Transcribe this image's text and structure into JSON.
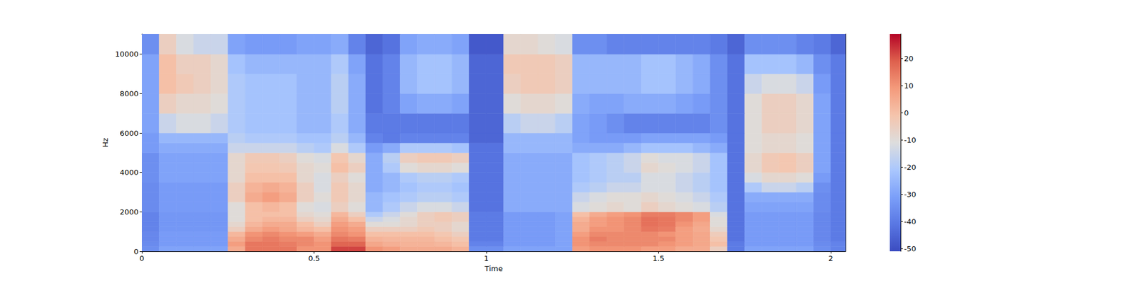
{
  "chart_data": {
    "type": "heatmap",
    "xlabel": "Time",
    "ylabel": "Hz",
    "xlim": [
      0,
      2.043
    ],
    "ylim": [
      0,
      11025
    ],
    "xticks": [
      0,
      0.5,
      1,
      1.5,
      2
    ],
    "yticks": [
      0,
      2000,
      4000,
      6000,
      8000,
      10000
    ],
    "grid": false,
    "x_edges": [
      0,
      0.05,
      0.1,
      0.15,
      0.2,
      0.25,
      0.3,
      0.35,
      0.4,
      0.45,
      0.5,
      0.55,
      0.6,
      0.65,
      0.7,
      0.75,
      0.8,
      0.85,
      0.9,
      0.95,
      1.0,
      1.05,
      1.1,
      1.15,
      1.2,
      1.25,
      1.3,
      1.35,
      1.4,
      1.45,
      1.5,
      1.55,
      1.6,
      1.65,
      1.7,
      1.75,
      1.8,
      1.85,
      1.9,
      1.95,
      2.0,
      2.043
    ],
    "y_edges": [
      0,
      250,
      500,
      750,
      1000,
      1250,
      1500,
      1750,
      2000,
      2500,
      3000,
      3500,
      4000,
      4500,
      5000,
      5500,
      6000,
      7000,
      8000,
      9000,
      10000,
      11025
    ],
    "cells": [
      [
        -35,
        -30,
        -30,
        -30,
        -30,
        5,
        15,
        15,
        15,
        10,
        10,
        22,
        22,
        10,
        8,
        5,
        5,
        5,
        3,
        -35,
        -35,
        -30,
        -30,
        -30,
        -30,
        8,
        10,
        10,
        10,
        8,
        8,
        5,
        5,
        -5,
        -40,
        -30,
        -30,
        -30,
        -30,
        -35,
        -38
      ],
      [
        -36,
        -32,
        -32,
        -32,
        -32,
        8,
        15,
        15,
        14,
        12,
        10,
        18,
        18,
        6,
        4,
        3,
        3,
        2,
        0,
        -38,
        -38,
        -32,
        -32,
        -32,
        -30,
        10,
        12,
        12,
        12,
        12,
        10,
        8,
        6,
        0,
        -40,
        -32,
        -32,
        -32,
        -32,
        -36,
        -38
      ],
      [
        -37,
        -32,
        -32,
        -32,
        -32,
        5,
        12,
        14,
        12,
        12,
        8,
        15,
        14,
        3,
        2,
        2,
        2,
        0,
        -2,
        -40,
        -40,
        -32,
        -32,
        -32,
        -30,
        10,
        14,
        12,
        12,
        12,
        12,
        8,
        6,
        -2,
        -42,
        -32,
        -32,
        -32,
        -32,
        -37,
        -40
      ],
      [
        -37,
        -32,
        -32,
        -32,
        -32,
        2,
        10,
        12,
        10,
        8,
        5,
        12,
        10,
        0,
        0,
        0,
        0,
        -2,
        -5,
        -40,
        -40,
        -32,
        -32,
        -32,
        -30,
        8,
        12,
        12,
        12,
        12,
        10,
        8,
        6,
        -4,
        -42,
        -32,
        -32,
        -32,
        -32,
        -37,
        -40
      ],
      [
        -38,
        -33,
        -33,
        -33,
        -33,
        -5,
        5,
        8,
        6,
        2,
        0,
        10,
        8,
        -5,
        -5,
        -5,
        -3,
        -5,
        -8,
        -40,
        -40,
        -32,
        -32,
        -32,
        -30,
        5,
        10,
        10,
        12,
        15,
        14,
        8,
        5,
        -8,
        -42,
        -32,
        -32,
        -32,
        -32,
        -37,
        -40
      ],
      [
        -38,
        -33,
        -33,
        -33,
        -33,
        -8,
        2,
        5,
        5,
        0,
        -5,
        8,
        5,
        -10,
        -10,
        -8,
        -5,
        -5,
        -8,
        -40,
        -40,
        -32,
        -32,
        -32,
        -30,
        5,
        8,
        10,
        12,
        16,
        15,
        10,
        6,
        -10,
        -42,
        -32,
        -32,
        -32,
        -32,
        -37,
        -40
      ],
      [
        -38,
        -33,
        -33,
        -33,
        -33,
        -10,
        0,
        2,
        2,
        -5,
        -8,
        5,
        0,
        -15,
        -12,
        -8,
        -5,
        -3,
        -5,
        -40,
        -40,
        -32,
        -32,
        -32,
        -30,
        3,
        8,
        10,
        12,
        16,
        15,
        12,
        8,
        -10,
        -42,
        -32,
        -32,
        -32,
        -32,
        -37,
        -40
      ],
      [
        -38,
        -33,
        -33,
        -33,
        -33,
        -10,
        0,
        0,
        0,
        -8,
        -10,
        2,
        -5,
        -20,
        -15,
        -10,
        -5,
        -3,
        -5,
        -40,
        -40,
        -32,
        -32,
        -32,
        -30,
        0,
        5,
        8,
        10,
        14,
        14,
        12,
        8,
        -12,
        -42,
        -32,
        -32,
        -32,
        -32,
        -37,
        -40
      ],
      [
        -36,
        -32,
        -32,
        -32,
        -32,
        -10,
        0,
        2,
        0,
        -10,
        -12,
        -5,
        -10,
        -25,
        -20,
        -15,
        -12,
        -12,
        -15,
        -42,
        -42,
        -28,
        -28,
        -28,
        -28,
        -12,
        -10,
        -8,
        -10,
        -5,
        -8,
        -10,
        -12,
        -18,
        -42,
        -30,
        -30,
        -30,
        -30,
        -36,
        -40
      ],
      [
        -36,
        -32,
        -32,
        -32,
        -32,
        -5,
        5,
        8,
        5,
        -5,
        -10,
        -3,
        -8,
        -25,
        -22,
        -20,
        -18,
        -18,
        -20,
        -42,
        -42,
        -28,
        -28,
        -28,
        -28,
        -15,
        -12,
        -10,
        -10,
        -8,
        -10,
        -12,
        -15,
        -20,
        -42,
        -28,
        -28,
        -28,
        -28,
        -36,
        -40
      ],
      [
        -36,
        -32,
        -32,
        -32,
        -32,
        -5,
        3,
        5,
        3,
        -5,
        -12,
        -3,
        -8,
        -28,
        -25,
        -22,
        -20,
        -20,
        -22,
        -42,
        -42,
        -28,
        -28,
        -28,
        -28,
        -20,
        -18,
        -15,
        -15,
        -12,
        -12,
        -15,
        -18,
        -22,
        -42,
        -20,
        -15,
        -15,
        -18,
        -35,
        -40
      ],
      [
        -35,
        -30,
        -30,
        -30,
        -30,
        -8,
        0,
        0,
        0,
        -8,
        -12,
        -5,
        -10,
        -28,
        -25,
        -20,
        -18,
        -18,
        -20,
        -42,
        -42,
        -28,
        -28,
        -28,
        -28,
        -22,
        -20,
        -18,
        -18,
        -12,
        -12,
        -15,
        -18,
        -22,
        -42,
        -12,
        -8,
        -8,
        -10,
        -32,
        -40
      ],
      [
        -35,
        -30,
        -30,
        -30,
        -30,
        -8,
        -2,
        -2,
        -3,
        -8,
        -10,
        0,
        -5,
        -28,
        -20,
        -10,
        -8,
        -8,
        -10,
        -42,
        -42,
        -28,
        -28,
        -28,
        -28,
        -22,
        -20,
        -18,
        -15,
        -8,
        -10,
        -12,
        -15,
        -22,
        -42,
        -8,
        -3,
        -2,
        -5,
        -30,
        -40
      ],
      [
        -35,
        -30,
        -30,
        -30,
        -30,
        -8,
        -3,
        -3,
        -5,
        -10,
        -12,
        -2,
        -8,
        -28,
        -18,
        -5,
        -3,
        -3,
        -5,
        -42,
        -42,
        -28,
        -28,
        -28,
        -28,
        -22,
        -20,
        -18,
        -15,
        -10,
        -12,
        -12,
        -15,
        -22,
        -42,
        -8,
        -3,
        -2,
        -5,
        -30,
        -40
      ],
      [
        -32,
        -28,
        -28,
        -28,
        -28,
        -15,
        -15,
        -15,
        -15,
        -18,
        -20,
        -12,
        -20,
        -32,
        -28,
        -20,
        -20,
        -20,
        -22,
        -42,
        -42,
        -25,
        -25,
        -25,
        -25,
        -28,
        -28,
        -28,
        -25,
        -22,
        -22,
        -22,
        -25,
        -28,
        -42,
        -10,
        -8,
        -8,
        -10,
        -30,
        -40
      ],
      [
        -32,
        -25,
        -25,
        -25,
        -25,
        -18,
        -20,
        -20,
        -20,
        -22,
        -22,
        -18,
        -25,
        -38,
        -40,
        -38,
        -38,
        -38,
        -38,
        -45,
        -45,
        -25,
        -25,
        -25,
        -25,
        -30,
        -32,
        -32,
        -32,
        -30,
        -30,
        -30,
        -30,
        -32,
        -42,
        -10,
        -8,
        -8,
        -10,
        -30,
        -40
      ],
      [
        -30,
        -15,
        -12,
        -12,
        -15,
        -20,
        -22,
        -22,
        -22,
        -25,
        -25,
        -20,
        -28,
        -40,
        -40,
        -40,
        -40,
        -40,
        -40,
        -45,
        -45,
        -18,
        -15,
        -15,
        -18,
        -30,
        -32,
        -35,
        -38,
        -38,
        -38,
        -38,
        -38,
        -35,
        -42,
        -10,
        -5,
        -5,
        -8,
        -30,
        -40
      ],
      [
        -30,
        -5,
        -8,
        -8,
        -10,
        -20,
        -22,
        -22,
        -22,
        -25,
        -25,
        -18,
        -28,
        -42,
        -38,
        -30,
        -28,
        -28,
        -30,
        -45,
        -45,
        -10,
        -8,
        -8,
        -10,
        -28,
        -30,
        -30,
        -28,
        -28,
        -28,
        -30,
        -32,
        -35,
        -42,
        -10,
        -5,
        -5,
        -8,
        -30,
        -40
      ],
      [
        -30,
        0,
        -3,
        -5,
        -8,
        -20,
        -22,
        -22,
        -22,
        -25,
        -25,
        -18,
        -28,
        -42,
        -38,
        -25,
        -22,
        -22,
        -25,
        -45,
        -45,
        -5,
        -3,
        -3,
        -5,
        -25,
        -25,
        -25,
        -25,
        -22,
        -22,
        -25,
        -28,
        -35,
        -42,
        -15,
        -12,
        -12,
        -15,
        -32,
        -40
      ],
      [
        -30,
        0,
        -5,
        -5,
        -8,
        -22,
        -25,
        -25,
        -25,
        -25,
        -25,
        -20,
        -30,
        -42,
        -38,
        -25,
        -22,
        -22,
        -25,
        -45,
        -45,
        -3,
        -3,
        -3,
        -5,
        -25,
        -25,
        -25,
        -25,
        -22,
        -22,
        -25,
        -28,
        -35,
        -42,
        -22,
        -22,
        -22,
        -25,
        -35,
        -40
      ],
      [
        -35,
        -5,
        -12,
        -15,
        -15,
        -30,
        -32,
        -32,
        -32,
        -30,
        -30,
        -28,
        -38,
        -45,
        -42,
        -30,
        -28,
        -28,
        -30,
        -48,
        -48,
        -8,
        -8,
        -10,
        -12,
        -35,
        -35,
        -38,
        -38,
        -38,
        -38,
        -38,
        -38,
        -40,
        -45,
        -35,
        -35,
        -35,
        -38,
        -40,
        -45
      ]
    ],
    "colorbar": {
      "range": [
        -51,
        29
      ],
      "ticks": [
        -50,
        -40,
        -30,
        -20,
        -10,
        0,
        10,
        20
      ]
    }
  }
}
